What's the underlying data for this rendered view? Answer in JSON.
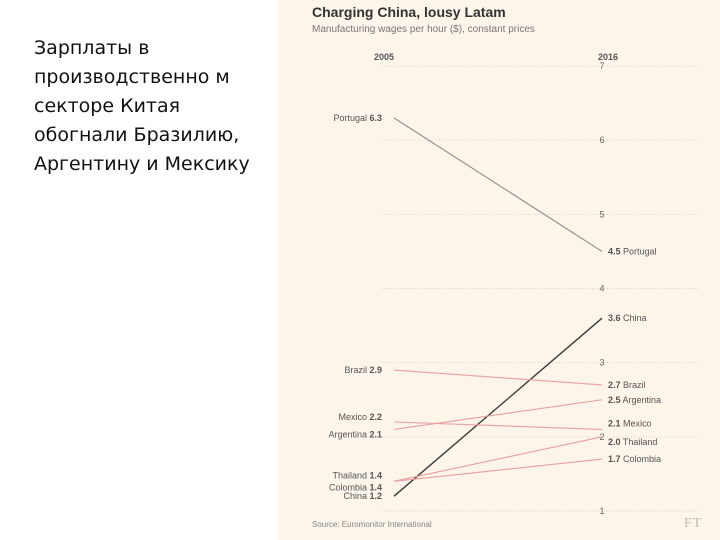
{
  "slide": {
    "text": "Зарплаты в производственно м секторе Китая обогнали Бразилию, Аргентину и Мексику"
  },
  "chart_data": {
    "type": "line",
    "title": "Charging China, lousy Latam",
    "subtitle": "Manufacturing wages per hour ($), constant prices",
    "source": "Source: Euromonitor International",
    "logo": "FT",
    "x": [
      "2005",
      "2016"
    ],
    "ylim": [
      1,
      7
    ],
    "yticks": [
      1,
      2,
      3,
      4,
      5,
      6,
      7
    ],
    "grid": true,
    "series": [
      {
        "name": "Portugal",
        "values": [
          6.3,
          4.5
        ],
        "color": "#8c8c8c"
      },
      {
        "name": "China",
        "values": [
          1.2,
          3.6
        ],
        "color": "#3a3a3a"
      },
      {
        "name": "Brazil",
        "values": [
          2.9,
          2.7
        ],
        "color": "#e8a0a0"
      },
      {
        "name": "Mexico",
        "values": [
          2.2,
          2.1
        ],
        "color": "#e8a0a0"
      },
      {
        "name": "Argentina",
        "values": [
          2.1,
          2.5
        ],
        "color": "#e8a0a0"
      },
      {
        "name": "Thailand",
        "values": [
          1.4,
          2.0
        ],
        "color": "#e8a0a0"
      },
      {
        "name": "Colombia",
        "values": [
          1.4,
          1.7
        ],
        "color": "#e8a0a0"
      }
    ]
  }
}
